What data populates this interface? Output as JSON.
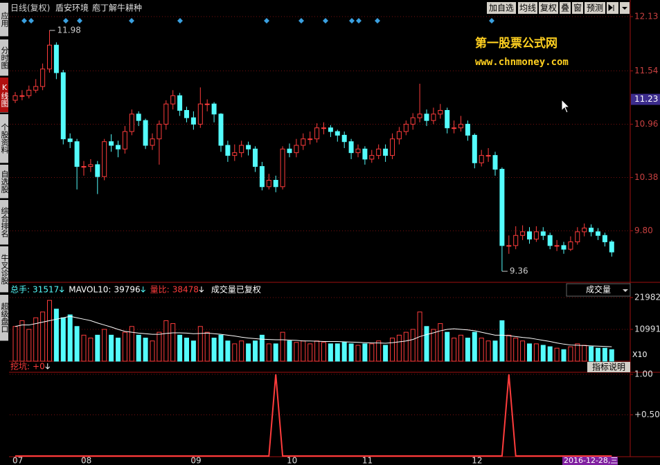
{
  "header": {
    "period": "日线(复权)",
    "stock": "盾安环境",
    "indicator": "庖丁解牛耕种",
    "buttons": [
      "加自选",
      "均线",
      "复权",
      "叠",
      "窗",
      "预测"
    ]
  },
  "sidebar": [
    "应用",
    "分时图",
    "K线图",
    "个股资料",
    "自选股",
    "综合排名",
    "牛叉诊股",
    "超级盘口"
  ],
  "watermark": {
    "title": "第一股票公式网",
    "url": "www.chnmoney.com"
  },
  "date": "2016-12-28,三",
  "chart_data": [
    {
      "type": "candlestick",
      "categories": [
        "07",
        null,
        null,
        null,
        null,
        null,
        null,
        null,
        null,
        null,
        "08",
        null,
        null,
        null,
        null,
        null,
        null,
        null,
        null,
        null,
        null,
        null,
        null,
        null,
        null,
        null,
        "09",
        null,
        null,
        null,
        null,
        null,
        null,
        null,
        null,
        null,
        null,
        null,
        null,
        null,
        "10",
        null,
        null,
        null,
        null,
        null,
        null,
        null,
        null,
        null,
        null,
        "11",
        null,
        null,
        null,
        null,
        null,
        null,
        null,
        null,
        null,
        null,
        null,
        null,
        null,
        null,
        null,
        "12",
        null,
        null,
        null,
        null,
        null,
        null,
        null,
        null,
        null,
        null,
        null,
        null,
        null,
        null,
        null,
        null,
        null,
        null,
        null,
        null
      ],
      "open": [
        11.22,
        11.27,
        11.27,
        11.33,
        11.37,
        11.56,
        11.82,
        11.52,
        10.8,
        10.77,
        10.5,
        10.5,
        10.52,
        10.39,
        10.77,
        10.73,
        10.69,
        10.88,
        11.07,
        11.0,
        10.73,
        10.8,
        10.96,
        11.18,
        11.27,
        11.11,
        11.03,
        10.96,
        11.18,
        11.18,
        11.07,
        10.73,
        10.62,
        10.65,
        10.73,
        10.69,
        10.5,
        10.28,
        10.35,
        10.28,
        10.69,
        10.65,
        10.73,
        10.8,
        10.8,
        10.92,
        10.92,
        10.88,
        10.84,
        10.77,
        10.65,
        10.69,
        10.58,
        10.62,
        10.69,
        10.62,
        10.8,
        10.88,
        10.96,
        11.03,
        11.07,
        11.0,
        11.07,
        11.11,
        10.92,
        10.92,
        10.96,
        10.84,
        10.54,
        10.62,
        10.62,
        10.47,
        9.64,
        9.64,
        9.75,
        9.79,
        9.71,
        9.79,
        9.75,
        9.64,
        9.64,
        9.6,
        9.68,
        9.79,
        9.83,
        9.79,
        9.75,
        9.68
      ],
      "high": [
        11.31,
        11.33,
        11.38,
        11.45,
        11.62,
        11.98,
        11.85,
        11.55,
        10.86,
        10.8,
        10.56,
        10.58,
        10.56,
        10.8,
        10.85,
        10.78,
        10.94,
        11.12,
        11.1,
        11.02,
        10.86,
        11.0,
        11.22,
        11.33,
        11.3,
        11.15,
        11.1,
        11.36,
        11.23,
        11.2,
        11.08,
        10.78,
        10.74,
        10.78,
        10.77,
        10.72,
        10.55,
        10.42,
        10.4,
        10.72,
        10.75,
        10.8,
        10.86,
        10.88,
        10.97,
        10.98,
        10.95,
        10.9,
        10.88,
        10.8,
        10.74,
        10.72,
        10.68,
        10.74,
        10.74,
        10.86,
        10.93,
        11.0,
        11.08,
        11.4,
        11.12,
        11.14,
        11.18,
        11.14,
        11.0,
        11.05,
        11.0,
        10.86,
        10.68,
        10.7,
        10.66,
        10.49,
        9.75,
        9.85,
        9.86,
        9.84,
        9.85,
        9.84,
        9.78,
        9.7,
        9.68,
        9.74,
        9.84,
        9.88,
        9.87,
        9.83,
        9.78,
        9.7
      ],
      "low": [
        11.19,
        11.22,
        11.24,
        11.3,
        11.33,
        11.52,
        11.45,
        10.74,
        10.7,
        10.25,
        10.4,
        10.44,
        10.2,
        10.35,
        10.66,
        10.6,
        10.64,
        10.84,
        10.94,
        10.69,
        10.68,
        10.52,
        10.9,
        11.12,
        11.05,
        10.98,
        10.9,
        10.92,
        11.1,
        10.98,
        10.66,
        10.55,
        10.56,
        10.6,
        10.62,
        10.44,
        10.24,
        10.25,
        10.22,
        10.25,
        10.6,
        10.6,
        10.68,
        10.74,
        10.76,
        10.85,
        10.82,
        10.77,
        10.7,
        10.58,
        10.6,
        10.52,
        10.54,
        10.58,
        10.55,
        10.58,
        10.74,
        10.84,
        10.9,
        10.98,
        10.94,
        10.96,
        11.02,
        10.86,
        10.86,
        10.88,
        10.78,
        10.48,
        10.5,
        10.55,
        10.4,
        9.36,
        9.55,
        9.6,
        9.7,
        9.66,
        9.68,
        9.7,
        9.6,
        9.58,
        9.55,
        9.58,
        9.65,
        9.74,
        9.74,
        9.7,
        9.63,
        9.52
      ],
      "close": [
        11.27,
        11.27,
        11.33,
        11.37,
        11.56,
        11.82,
        11.52,
        10.8,
        10.77,
        10.5,
        10.5,
        10.52,
        10.39,
        10.77,
        10.73,
        10.69,
        10.88,
        11.07,
        11.0,
        10.73,
        10.8,
        10.96,
        11.18,
        11.27,
        11.11,
        11.03,
        10.96,
        11.18,
        11.18,
        11.07,
        10.73,
        10.62,
        10.65,
        10.73,
        10.69,
        10.5,
        10.28,
        10.35,
        10.28,
        10.69,
        10.65,
        10.73,
        10.8,
        10.8,
        10.92,
        10.92,
        10.88,
        10.84,
        10.77,
        10.65,
        10.69,
        10.58,
        10.62,
        10.69,
        10.62,
        10.8,
        10.88,
        10.96,
        11.03,
        11.07,
        11.0,
        11.07,
        11.11,
        10.92,
        10.92,
        10.96,
        10.84,
        10.54,
        10.62,
        10.62,
        10.47,
        9.64,
        9.64,
        9.75,
        9.79,
        9.71,
        9.79,
        9.75,
        9.64,
        9.64,
        9.6,
        9.68,
        9.79,
        9.83,
        9.79,
        9.75,
        9.68,
        9.57
      ],
      "ylim": [
        9.24,
        12.13
      ],
      "yticks": [
        12.13,
        11.54,
        10.96,
        10.38,
        {
          "value": 9.8,
          "label": "9.80"
        }
      ],
      "grid": true,
      "up_color": "#ff3c3c",
      "down_color": "#54fcfc",
      "last_price": {
        "value": 11.23,
        "label": "11.23"
      },
      "max_label": 11.98,
      "min_label": 9.36
    },
    {
      "type": "bar",
      "title": "成交量已复权",
      "selector": "成交量",
      "total_label": "总手:",
      "total": 31517,
      "ma_label": "MAVOL10:",
      "ma": 39796,
      "ratio_label": "量比:",
      "ratio": 38478,
      "unit": "X10",
      "values": [
        12000,
        14000,
        11000,
        15000,
        17000,
        21000,
        18000,
        15000,
        16000,
        12000,
        9000,
        8000,
        9000,
        11000,
        9000,
        8000,
        10000,
        12000,
        9000,
        8000,
        7000,
        10000,
        14000,
        13000,
        9000,
        8000,
        7000,
        12000,
        10000,
        8000,
        9000,
        7000,
        6000,
        7000,
        6000,
        7000,
        9000,
        6000,
        6000,
        10000,
        7000,
        6500,
        7000,
        6000,
        7000,
        6500,
        6000,
        6000,
        6500,
        6000,
        5500,
        6000,
        6000,
        7000,
        5500,
        8000,
        9000,
        10000,
        11000,
        17000,
        12000,
        11000,
        13000,
        10000,
        8000,
        9000,
        8000,
        10000,
        8000,
        7000,
        7000,
        14000,
        9000,
        8000,
        7000,
        6000,
        6000,
        5500,
        5000,
        4500,
        4000,
        5000,
        6000,
        5500,
        5000,
        4500,
        4500,
        4000
      ],
      "ma_values": [
        12000,
        12500,
        12500,
        13000,
        13500,
        14000,
        14500,
        15000,
        15500,
        15000,
        14500,
        14000,
        13200,
        12500,
        11800,
        11000,
        10300,
        10000,
        9700,
        9500,
        9300,
        9300,
        9600,
        9800,
        9800,
        9700,
        9500,
        9600,
        9700,
        9500,
        9300,
        9000,
        8700,
        8300,
        8000,
        7800,
        7600,
        7500,
        7400,
        7400,
        7300,
        7200,
        7000,
        7000,
        6900,
        6800,
        6800,
        6800,
        6700,
        6600,
        6500,
        6400,
        6300,
        6300,
        6200,
        6400,
        6700,
        7000,
        7500,
        8500,
        9200,
        9800,
        10500,
        11000,
        11200,
        11000,
        10800,
        10500,
        10000,
        9500,
        9000,
        9000,
        8800,
        8500,
        8200,
        8000,
        7600,
        7200,
        6800,
        6300,
        5900,
        5600,
        5500,
        5400,
        5300,
        5200,
        5100,
        5000
      ],
      "ma_color": "#ffffff",
      "ylim": [
        0,
        21982
      ],
      "yticks": [
        21982,
        10991
      ],
      "grid": true
    },
    {
      "type": "line",
      "name_label": "挖坑:",
      "current": {
        "value": 0,
        "label": "+0"
      },
      "button": "指标说明",
      "color": "#ff3c3c",
      "values": [
        0,
        0,
        0,
        0,
        0,
        0,
        0,
        0,
        0,
        0,
        0,
        0,
        0,
        0,
        0,
        0,
        0,
        0,
        0,
        0,
        0,
        0,
        0,
        0,
        0,
        0,
        0,
        0,
        0,
        0,
        0,
        0,
        0,
        0,
        0,
        0,
        0,
        0,
        1,
        0,
        0,
        0,
        0,
        0,
        0,
        0,
        0,
        0,
        0,
        0,
        0,
        0,
        0,
        0,
        0,
        0,
        0,
        0,
        0,
        0,
        0,
        0,
        0,
        0,
        0,
        0,
        0,
        0,
        0,
        0,
        0,
        0,
        1,
        0,
        0,
        0,
        0,
        0,
        0,
        0,
        0,
        0,
        0,
        0,
        0,
        0,
        0,
        0
      ],
      "ylim": [
        0,
        1
      ],
      "yticks": [
        {
          "value": 1,
          "label": "1.00"
        },
        {
          "value": 0.504,
          "label": "+0.504"
        }
      ],
      "grid": true
    }
  ]
}
